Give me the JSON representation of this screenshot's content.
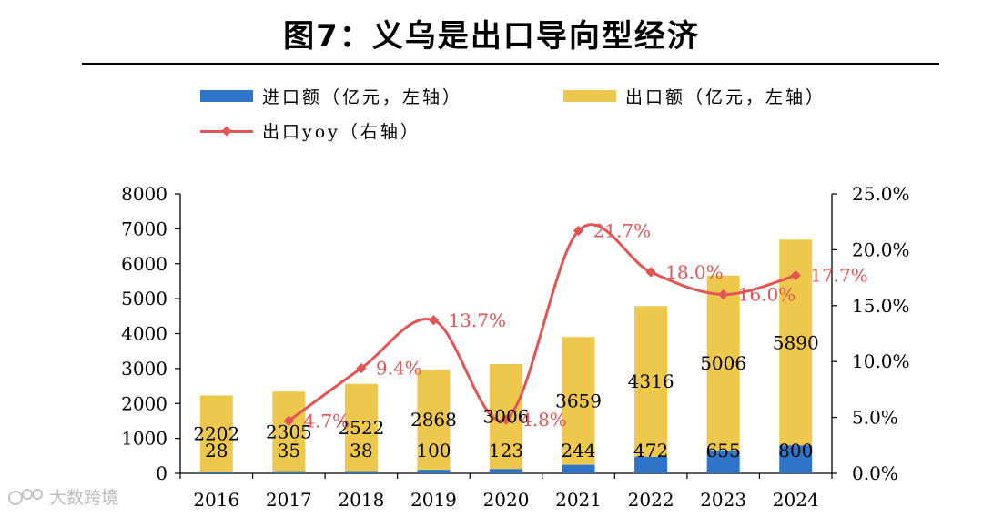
{
  "title": "图7：义乌是出口导向型经济",
  "legend": {
    "import_label": "进口额（亿元，左轴）",
    "export_label": "出口额（亿元，左轴）",
    "yoy_label": "出口yoy（右轴）"
  },
  "watermark": "大数跨境",
  "colors": {
    "import": "#2e75c9",
    "export": "#edc84d",
    "yoy": "#e15555"
  },
  "chart_data": {
    "type": "bar+line",
    "categories": [
      "2016",
      "2017",
      "2018",
      "2019",
      "2020",
      "2021",
      "2022",
      "2023",
      "2024"
    ],
    "series": [
      {
        "name": "进口额（亿元，左轴）",
        "type": "bar",
        "axis": "left",
        "values": [
          28,
          35,
          38,
          100,
          123,
          244,
          472,
          655,
          800
        ],
        "labels": [
          "28",
          "35",
          "38",
          "100",
          "123",
          "244",
          "472",
          "655",
          "800"
        ]
      },
      {
        "name": "出口额（亿元，左轴）",
        "type": "bar",
        "axis": "left",
        "values": [
          2202,
          2305,
          2522,
          2868,
          3006,
          3659,
          4316,
          5006,
          5890
        ],
        "labels": [
          "2202",
          "2305",
          "2522",
          "2868",
          "3006",
          "3659",
          "4316",
          "5006",
          "5890"
        ]
      },
      {
        "name": "出口yoy（右轴）",
        "type": "line",
        "axis": "right",
        "x": [
          "2017",
          "2018",
          "2019",
          "2020",
          "2021",
          "2022",
          "2023",
          "2024"
        ],
        "values": [
          4.7,
          9.4,
          13.7,
          4.8,
          21.7,
          18.0,
          16.0,
          17.7
        ],
        "labels": [
          "4.7%",
          "9.4%",
          "13.7%",
          "4.8%",
          "21.7%",
          "18.0%",
          "16.0%",
          "17.7%"
        ]
      }
    ],
    "left_axis": {
      "min": 0,
      "max": 8000,
      "ticks": [
        "0",
        "1000",
        "2000",
        "3000",
        "4000",
        "5000",
        "6000",
        "7000",
        "8000"
      ]
    },
    "right_axis": {
      "min": 0,
      "max": 25,
      "ticks": [
        "0.0%",
        "5.0%",
        "10.0%",
        "15.0%",
        "20.0%",
        "25.0%"
      ]
    },
    "grid": false,
    "legend_position": "top-left"
  }
}
